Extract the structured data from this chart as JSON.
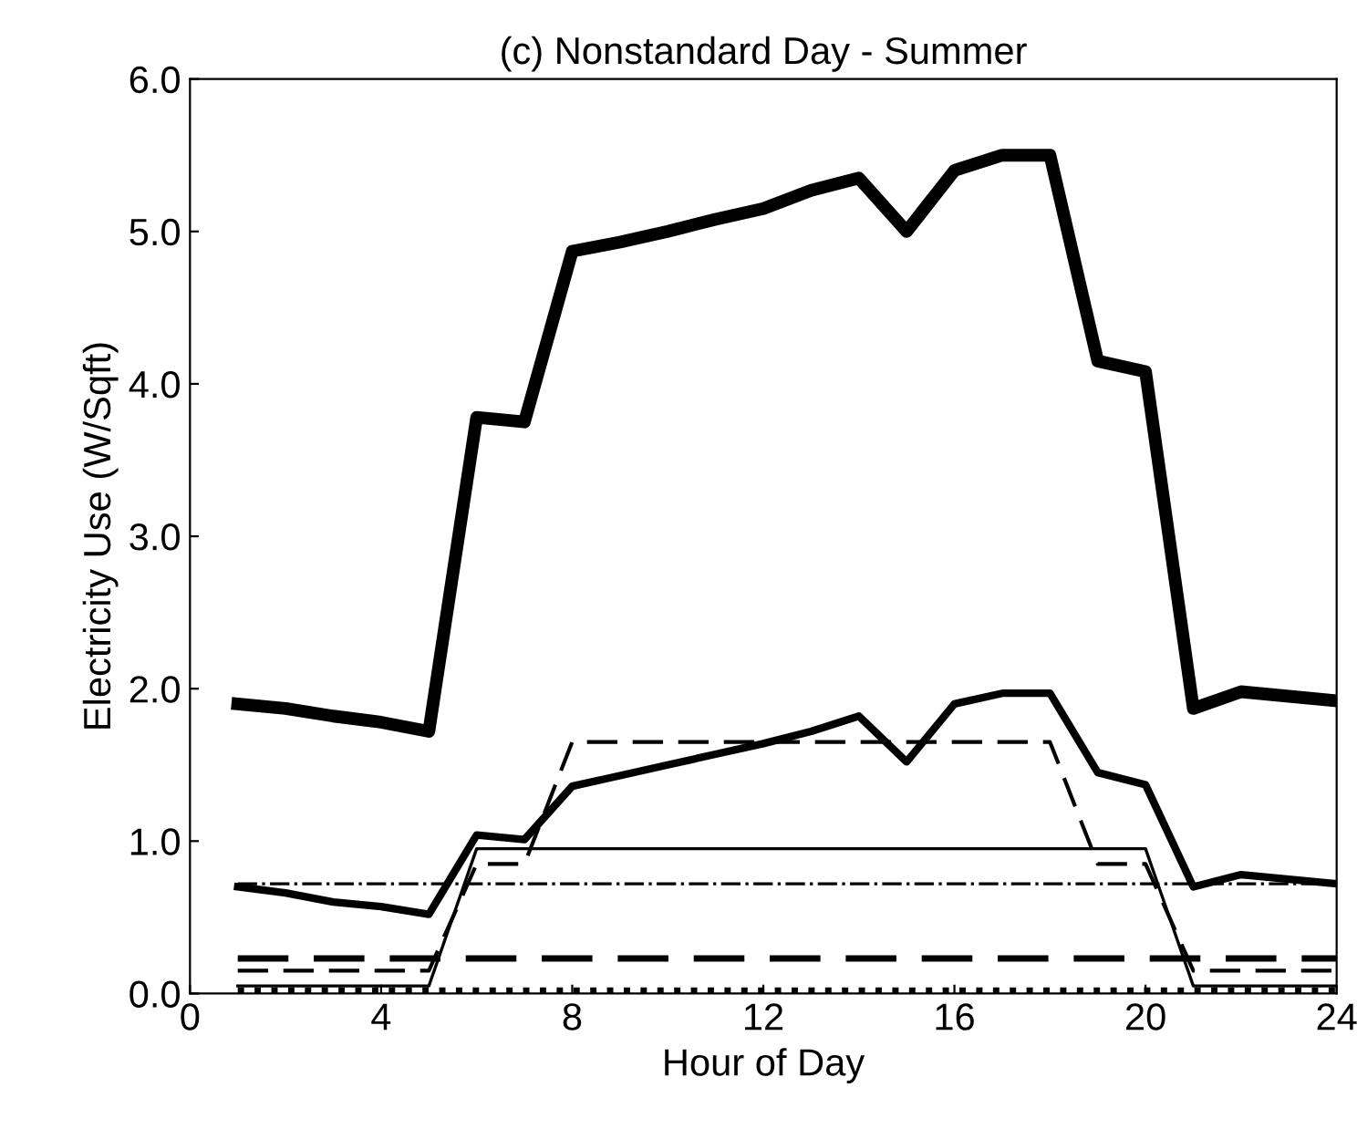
{
  "chart_data": {
    "type": "line",
    "title": "(c) Nonstandard Day - Summer",
    "xlabel": "Hour of Day",
    "ylabel": "Electricity Use (W/Sqft)",
    "x": [
      1,
      2,
      3,
      4,
      5,
      6,
      7,
      8,
      9,
      10,
      11,
      12,
      13,
      14,
      15,
      16,
      17,
      18,
      19,
      20,
      21,
      22,
      23,
      24
    ],
    "xlim": [
      0,
      24
    ],
    "xticks": [
      0,
      4,
      8,
      12,
      16,
      20,
      24
    ],
    "ylim": [
      0,
      6
    ],
    "yticks": [
      {
        "value": 0,
        "label": "0.0"
      },
      {
        "value": 1,
        "label": "1.0"
      },
      {
        "value": 2,
        "label": "2.0"
      },
      {
        "value": 3,
        "label": "3.0"
      },
      {
        "value": 4,
        "label": "4.0"
      },
      {
        "value": 5,
        "label": "5.0"
      },
      {
        "value": 6,
        "label": "6.0"
      }
    ],
    "grid": false,
    "marker": "none",
    "series": [
      {
        "color": "#000000",
        "line_style": "solid",
        "values": [
          1.9,
          1.87,
          1.82,
          1.78,
          1.72,
          3.78,
          3.75,
          4.87,
          4.93,
          5.0,
          5.08,
          5.15,
          5.27,
          5.35,
          5.0,
          5.4,
          5.5,
          5.5,
          4.15,
          4.08,
          1.87,
          1.98,
          1.95,
          1.92
        ]
      },
      {
        "color": "#000000",
        "line_style": "solid",
        "values": [
          0.7,
          0.66,
          0.6,
          0.57,
          0.52,
          1.04,
          1.01,
          1.36,
          1.43,
          1.5,
          1.57,
          1.64,
          1.72,
          1.82,
          1.52,
          1.9,
          1.97,
          1.97,
          1.45,
          1.37,
          0.7,
          0.78,
          0.75,
          0.72
        ]
      },
      {
        "color": "#000000",
        "line_style": "dashed",
        "values": [
          0.15,
          0.15,
          0.15,
          0.15,
          0.15,
          0.85,
          0.85,
          1.65,
          1.65,
          1.65,
          1.65,
          1.65,
          1.65,
          1.65,
          1.65,
          1.65,
          1.65,
          1.65,
          0.85,
          0.85,
          0.15,
          0.15,
          0.15,
          0.15
        ]
      },
      {
        "color": "#000000",
        "line_style": "solid",
        "values": [
          0.05,
          0.05,
          0.05,
          0.05,
          0.05,
          0.95,
          0.95,
          0.95,
          0.95,
          0.95,
          0.95,
          0.95,
          0.95,
          0.95,
          0.95,
          0.95,
          0.95,
          0.95,
          0.95,
          0.95,
          0.05,
          0.05,
          0.05,
          0.05
        ]
      },
      {
        "color": "#000000",
        "line_style": "dashdot",
        "values": [
          0.72,
          0.72,
          0.72,
          0.72,
          0.72,
          0.72,
          0.72,
          0.72,
          0.72,
          0.72,
          0.72,
          0.72,
          0.72,
          0.72,
          0.72,
          0.72,
          0.72,
          0.72,
          0.72,
          0.72,
          0.72,
          0.72,
          0.72,
          0.72
        ]
      },
      {
        "color": "#000000",
        "line_style": "dashed",
        "values": [
          0.23,
          0.23,
          0.23,
          0.23,
          0.23,
          0.23,
          0.23,
          0.23,
          0.23,
          0.23,
          0.23,
          0.23,
          0.23,
          0.23,
          0.23,
          0.23,
          0.23,
          0.23,
          0.23,
          0.23,
          0.23,
          0.23,
          0.23,
          0.23
        ]
      },
      {
        "color": "#000000",
        "line_style": "dotted",
        "values": [
          0.02,
          0.02,
          0.02,
          0.02,
          0.02,
          0.02,
          0.02,
          0.02,
          0.02,
          0.02,
          0.02,
          0.02,
          0.02,
          0.02,
          0.02,
          0.02,
          0.02,
          0.02,
          0.02,
          0.02,
          0.02,
          0.02,
          0.02,
          0.02
        ]
      }
    ]
  }
}
